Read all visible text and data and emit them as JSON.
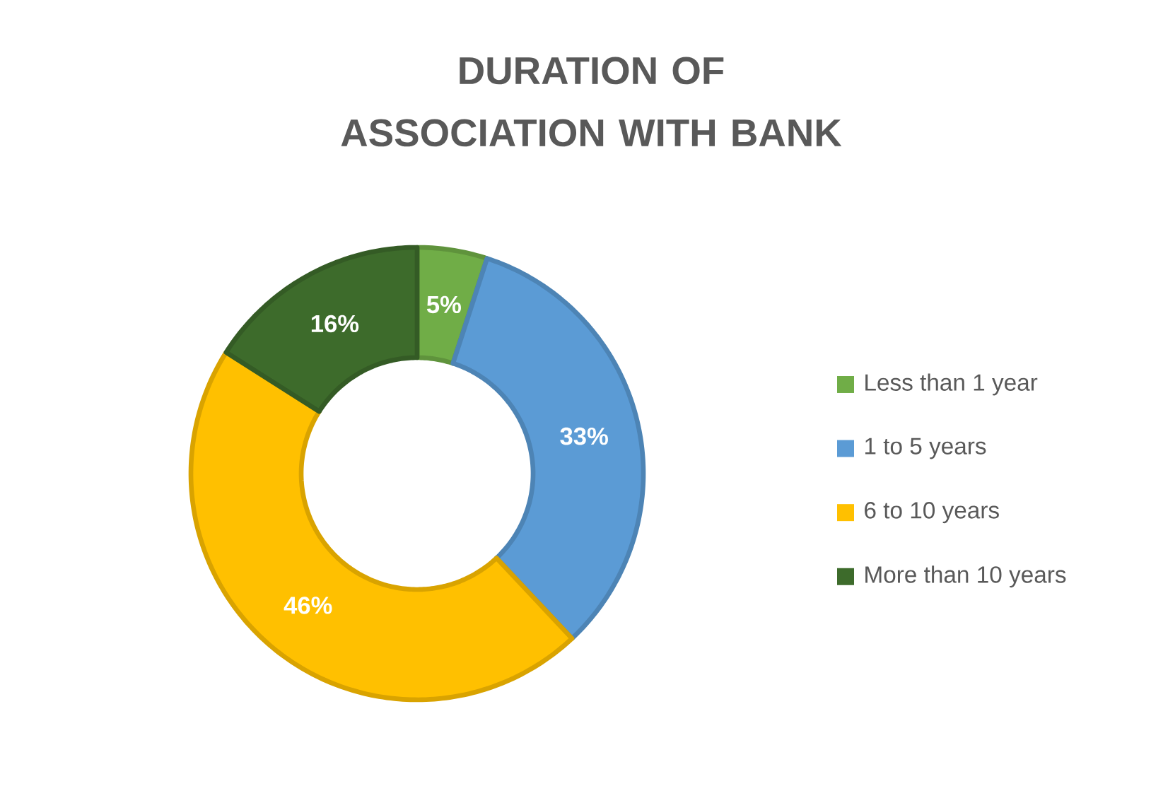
{
  "chart_data": {
    "type": "donut",
    "title": "DURATION OF ASSOCIATION WITH BANK",
    "categories": [
      "Less than 1 year",
      "1 to 5 years",
      "6 to 10 years",
      "More than 10 years"
    ],
    "values": [
      5,
      33,
      46,
      16
    ],
    "colors": [
      "#70ad47",
      "#5b9bd5",
      "#ffc000",
      "#3d6b2b"
    ],
    "value_labels": [
      "5%",
      "33%",
      "46%",
      "16%"
    ],
    "legend": "right"
  }
}
